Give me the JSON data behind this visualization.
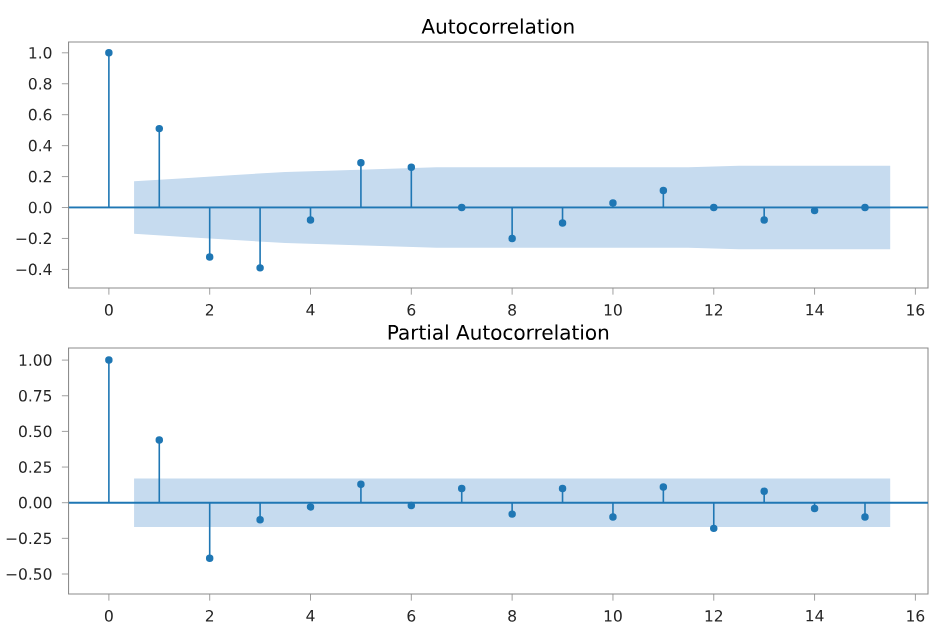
{
  "chart_data": [
    {
      "type": "lollipop",
      "title": "Autocorrelation",
      "marker": "circle",
      "xlim": [
        -0.8,
        16.25
      ],
      "ylim": [
        -0.52,
        1.07
      ],
      "xticks": [
        0,
        2,
        4,
        6,
        8,
        10,
        12,
        14,
        16
      ],
      "yticks": [
        {
          "value": -0.4,
          "label": "−0.4"
        },
        {
          "value": -0.2,
          "label": "−0.2"
        },
        {
          "value": 0,
          "label": "0.0"
        },
        {
          "value": 0.2,
          "label": "0.2"
        },
        {
          "value": 0.4,
          "label": "0.4"
        },
        {
          "value": 0.6,
          "label": "0.6"
        },
        {
          "value": 0.8,
          "label": "0.8"
        },
        {
          "value": 1.0,
          "label": "1.0"
        }
      ],
      "ref_lines": [
        {
          "axis": "y",
          "value": 0,
          "color": "#1f77b4"
        }
      ],
      "series": [
        {
          "type": "area",
          "color": "#c6dbef",
          "x": [
            0.5,
            1.5,
            2.5,
            3.5,
            4.5,
            5.5,
            6.5,
            7.5,
            8.5,
            9.5,
            10.5,
            11.5,
            12.5,
            13.5,
            14.5,
            15.5
          ],
          "values": [
            null,
            null,
            null,
            null,
            null,
            null,
            null,
            null,
            null,
            null,
            null,
            null,
            null,
            null,
            null,
            null
          ],
          "lower": [
            -0.17,
            -0.19,
            -0.21,
            -0.23,
            -0.24,
            -0.25,
            -0.26,
            -0.26,
            -0.26,
            -0.26,
            -0.26,
            -0.26,
            -0.27,
            -0.27,
            -0.27,
            -0.27
          ],
          "upper": [
            0.17,
            0.19,
            0.21,
            0.23,
            0.24,
            0.25,
            0.26,
            0.26,
            0.26,
            0.26,
            0.26,
            0.26,
            0.27,
            0.27,
            0.27,
            0.27
          ]
        },
        {
          "color": "#1f77b4",
          "x": [
            0,
            1,
            2,
            3,
            4,
            5,
            6,
            7,
            8,
            9,
            10,
            11,
            12,
            13,
            14,
            15
          ],
          "values": [
            1.0,
            0.51,
            -0.32,
            -0.39,
            -0.08,
            0.29,
            0.26,
            0.0,
            -0.2,
            -0.1,
            0.03,
            0.11,
            0.0,
            -0.08,
            -0.02,
            0.0
          ]
        }
      ]
    },
    {
      "type": "lollipop",
      "title": "Partial Autocorrelation",
      "marker": "circle",
      "xlim": [
        -0.8,
        16.25
      ],
      "ylim": [
        -0.64,
        1.085
      ],
      "xticks": [
        0,
        2,
        4,
        6,
        8,
        10,
        12,
        14,
        16
      ],
      "yticks": [
        {
          "value": -0.5,
          "label": "−0.50"
        },
        {
          "value": -0.25,
          "label": "−0.25"
        },
        {
          "value": 0,
          "label": "0.00"
        },
        {
          "value": 0.25,
          "label": "0.25"
        },
        {
          "value": 0.5,
          "label": "0.50"
        },
        {
          "value": 0.75,
          "label": "0.75"
        },
        {
          "value": 1.0,
          "label": "1.00"
        }
      ],
      "ref_lines": [
        {
          "axis": "y",
          "value": 0,
          "color": "#1f77b4"
        }
      ],
      "series": [
        {
          "type": "area",
          "color": "#c6dbef",
          "x": [
            0.5,
            15.5
          ],
          "values": [
            null,
            null
          ],
          "lower": [
            -0.17,
            -0.17
          ],
          "upper": [
            0.17,
            0.17
          ]
        },
        {
          "color": "#1f77b4",
          "x": [
            0,
            1,
            2,
            3,
            4,
            5,
            6,
            7,
            8,
            9,
            10,
            11,
            12,
            13,
            14,
            15
          ],
          "values": [
            1.0,
            0.44,
            -0.39,
            -0.12,
            -0.03,
            0.13,
            -0.02,
            0.1,
            -0.08,
            0.1,
            -0.1,
            0.11,
            -0.18,
            0.08,
            -0.04,
            -0.1
          ]
        }
      ]
    }
  ]
}
